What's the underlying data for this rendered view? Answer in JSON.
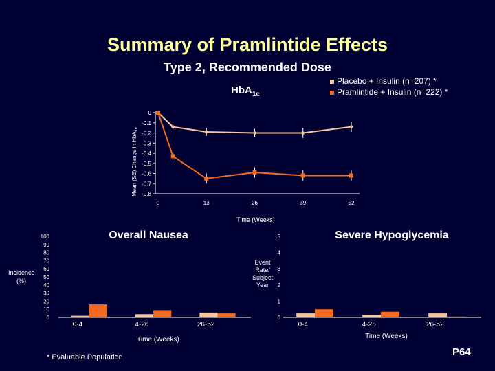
{
  "slide": {
    "title": "Summary of Pramlintide Effects",
    "subtitle": "Type 2, Recommended Dose",
    "footnote": "* Evaluable Population",
    "page": "P64"
  },
  "colors": {
    "background": "#000033",
    "title": "#ffff99",
    "placebo": "#f7c8a0",
    "pramlintide": "#f26a21"
  },
  "chart_data": [
    {
      "type": "line",
      "title": "HbA1c",
      "title_main": "Hb",
      "title_sub": "A",
      "title_sub2": "1c",
      "ylabel": "Mean (SE) Change in HbA1c",
      "ylabel_main": "Mean (SE) Change in HbA",
      "ylabel_sub": "1c",
      "xlabel": "Time (Weeks)",
      "x": [
        0,
        4,
        13,
        26,
        39,
        52
      ],
      "xticks": [
        "0",
        "13",
        "26",
        "39",
        "52"
      ],
      "yticks": [
        "0",
        "-0.1",
        "-0.2",
        "-0.3",
        "-0.4",
        "-0.5",
        "-0.6",
        "-0.7",
        "-0.8"
      ],
      "ylim": [
        -0.8,
        0
      ],
      "series": [
        {
          "name": "Placebo + Insulin (n=207) *",
          "values": [
            0,
            -0.14,
            -0.19,
            -0.2,
            -0.2,
            -0.14
          ],
          "error": [
            0,
            0.03,
            0.04,
            0.04,
            0.05,
            0.05
          ]
        },
        {
          "name": "Pramlintide + Insulin (n=222) *",
          "values": [
            0,
            -0.43,
            -0.65,
            -0.59,
            -0.62,
            -0.62
          ],
          "error": [
            0,
            0.04,
            0.05,
            0.05,
            0.05,
            0.05
          ]
        }
      ],
      "legend": "top-right"
    },
    {
      "type": "bar",
      "title": "Overall Nausea",
      "ylabel": "Incidence (%)",
      "ylabel_line1": "Incidence",
      "ylabel_line2": "(%)",
      "xlabel": "Time (Weeks)",
      "categories": [
        "0-4",
        "4-26",
        "26-52"
      ],
      "yticks": [
        "100",
        "90",
        "80",
        "70",
        "60",
        "50",
        "40",
        "30",
        "20",
        "10",
        "0"
      ],
      "ylim": [
        0,
        100
      ],
      "series": [
        {
          "name": "Placebo + Insulin",
          "values": [
            2,
            4,
            6
          ]
        },
        {
          "name": "Pramlintide + Insulin",
          "values": [
            16,
            9,
            5
          ]
        }
      ]
    },
    {
      "type": "bar",
      "title": "Severe Hypoglycemia",
      "ylabel": "Event Rate/ Subject Year",
      "ylabel_lines": [
        "Event",
        "Rate/",
        "Subject",
        "Year"
      ],
      "xlabel": "Time (Weeks)",
      "categories": [
        "0-4",
        "4-26",
        "26-52"
      ],
      "yticks": [
        "5",
        "4",
        "3",
        "2",
        "1",
        "0"
      ],
      "ylim": [
        0,
        5
      ],
      "series": [
        {
          "name": "Placebo + Insulin",
          "values": [
            0.25,
            0.15,
            0.25
          ]
        },
        {
          "name": "Pramlintide + Insulin",
          "values": [
            0.5,
            0.35,
            0.05
          ]
        }
      ]
    }
  ]
}
